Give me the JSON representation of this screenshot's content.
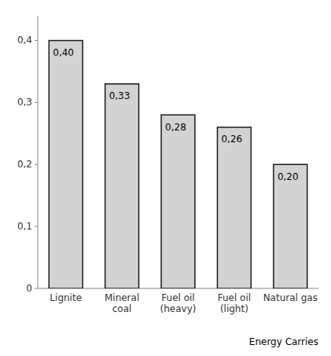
{
  "chart_data": {
    "type": "bar",
    "categories": [
      "Lignite",
      "Mineral\ncoal",
      "Fuel oil\n(heavy)",
      "Fuel oil\n(light)",
      "Natural gas"
    ],
    "values": [
      0.4,
      0.33,
      0.28,
      0.26,
      0.2
    ],
    "value_labels": [
      "0,40",
      "0,33",
      "0,28",
      "0,26",
      "0,20"
    ],
    "data_labels": true,
    "color": "#d3d3d3",
    "xlabel": "Energy Carries",
    "ylim": [
      0,
      0.44
    ],
    "yticks": [
      0,
      {
        "value": 0.1,
        "label": "0,1"
      },
      {
        "value": 0.2,
        "label": "0,2"
      },
      {
        "value": 0.3,
        "label": "0,3"
      },
      {
        "value": 0.4,
        "label": "0,4"
      }
    ],
    "grid": false
  }
}
